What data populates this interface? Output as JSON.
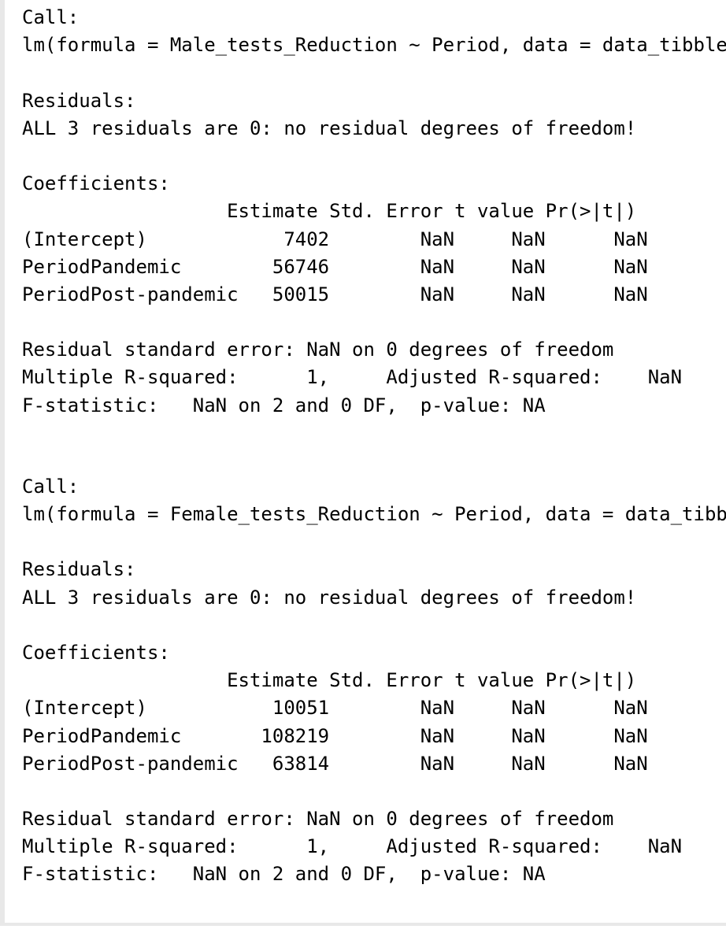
{
  "models": [
    {
      "call_header": "Call:",
      "call_formula": "lm(formula = Male_tests_Reduction ~ Period, data = data_tibble",
      "residuals_header": "Residuals:",
      "residuals_note": "ALL 3 residuals are 0: no residual degrees of freedom!",
      "coefficients_header": "Coefficients:",
      "coef_table_header": "                  Estimate Std. Error t value Pr(>|t|)",
      "coef_rows": [
        "(Intercept)            7402        NaN     NaN      NaN",
        "PeriodPandemic        56746        NaN     NaN      NaN",
        "PeriodPost-pandemic   50015        NaN     NaN      NaN"
      ],
      "rse_line": "Residual standard error: NaN on 0 degrees of freedom",
      "r2_line": "Multiple R-squared:      1,     Adjusted R-squared:    NaN",
      "f_line": "F-statistic:   NaN on 2 and 0 DF,  p-value: NA"
    },
    {
      "call_header": "Call:",
      "call_formula": "lm(formula = Female_tests_Reduction ~ Period, data = data_tibb",
      "residuals_header": "Residuals:",
      "residuals_note": "ALL 3 residuals are 0: no residual degrees of freedom!",
      "coefficients_header": "Coefficients:",
      "coef_table_header": "                  Estimate Std. Error t value Pr(>|t|)",
      "coef_rows": [
        "(Intercept)           10051        NaN     NaN      NaN",
        "PeriodPandemic       108219        NaN     NaN      NaN",
        "PeriodPost-pandemic   63814        NaN     NaN      NaN"
      ],
      "rse_line": "Residual standard error: NaN on 0 degrees of freedom",
      "r2_line": "Multiple R-squared:      1,     Adjusted R-squared:    NaN",
      "f_line": "F-statistic:   NaN on 2 and 0 DF,  p-value: NA"
    }
  ]
}
